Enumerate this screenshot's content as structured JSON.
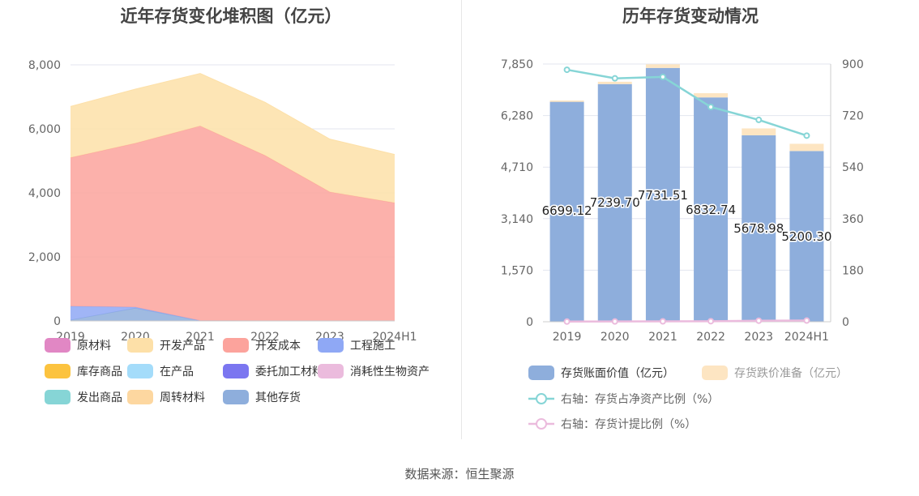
{
  "left_title": "近年存货变化堆积图（亿元）",
  "right_title": "历年存货变动情况",
  "source": "数据来源：恒生聚源",
  "colors": {
    "原材料": "#e187c4",
    "开发产品": "#fde0a8",
    "开发成本": "#fca39c",
    "工程施工": "#8fa8f5",
    "库存商品": "#fcc33f",
    "在产品": "#a4dcfa",
    "委托加工材料": "#7b76f0",
    "消耗性生物资产": "#ebbbdd",
    "发出商品": "#86d5d6",
    "周转材料": "#fdd7a0",
    "其他存货": "#8eaedc",
    "book_value": "#8eaedc",
    "impairment": "#fde5c2",
    "net_asset_line": "#86d5d6",
    "provision_line": "#ebbbdd"
  },
  "chart_data": [
    {
      "type": "area",
      "stacked": true,
      "title": "近年存货变化堆积图（亿元）",
      "categories": [
        "2019",
        "2020",
        "2021",
        "2022",
        "2023",
        "2024H1"
      ],
      "ylim": [
        0,
        8000
      ],
      "yticks": [
        "0",
        "2,000",
        "4,000",
        "6,000",
        "8,000"
      ],
      "grid": true,
      "legend_position": "bottom",
      "legend": [
        "原材料",
        "开发产品",
        "开发成本",
        "工程施工",
        "库存商品",
        "在产品",
        "委托加工材料",
        "消耗性生物资产",
        "发出商品",
        "周转材料",
        "其他存货"
      ],
      "series": [
        {
          "name": "其他存货",
          "values": [
            30,
            400,
            10,
            0,
            0,
            0
          ]
        },
        {
          "name": "工程施工",
          "values": [
            430,
            30,
            0,
            0,
            0,
            0
          ]
        },
        {
          "name": "开发成本",
          "values": [
            4640,
            5120,
            6080,
            5170,
            4030,
            3690
          ]
        },
        {
          "name": "开发产品",
          "values": [
            1600,
            1690,
            1640,
            1660,
            1650,
            1510
          ]
        }
      ]
    },
    {
      "type": "bar",
      "stacked": true,
      "title": "历年存货变动情况",
      "categories": [
        "2019",
        "2020",
        "2021",
        "2022",
        "2023",
        "2024H1"
      ],
      "ylim": [
        0,
        7850
      ],
      "yticks": [
        "0",
        "1,570",
        "3,140",
        "4,710",
        "6,280",
        "7,850"
      ],
      "y2lim": [
        0,
        900
      ],
      "y2ticks": [
        "0",
        "180",
        "360",
        "540",
        "720",
        "900"
      ],
      "grid": true,
      "legend_position": "bottom",
      "series": [
        {
          "name": "存货账面价值（亿元）",
          "axis": "left",
          "kind": "bar",
          "values": [
            6699.12,
            7239.7,
            7731.51,
            6832.74,
            5678.98,
            5200.3
          ],
          "labels": [
            "6699.12",
            "7239.70",
            "7731.51",
            "6832.74",
            "5678.98",
            "5200.30"
          ]
        },
        {
          "name": "存货跌价准备（亿元）",
          "axis": "left",
          "kind": "bar",
          "values": [
            40,
            70,
            110,
            130,
            210,
            220
          ]
        },
        {
          "name": "右轴：存货占净资产比例（%）",
          "axis": "right",
          "kind": "line",
          "values": [
            880,
            850,
            855,
            750,
            705,
            650
          ]
        },
        {
          "name": "右轴：存货计提比例（%）",
          "axis": "right",
          "kind": "line",
          "values": [
            0.6,
            1.0,
            1.4,
            1.9,
            3.6,
            4.1
          ]
        }
      ]
    }
  ]
}
